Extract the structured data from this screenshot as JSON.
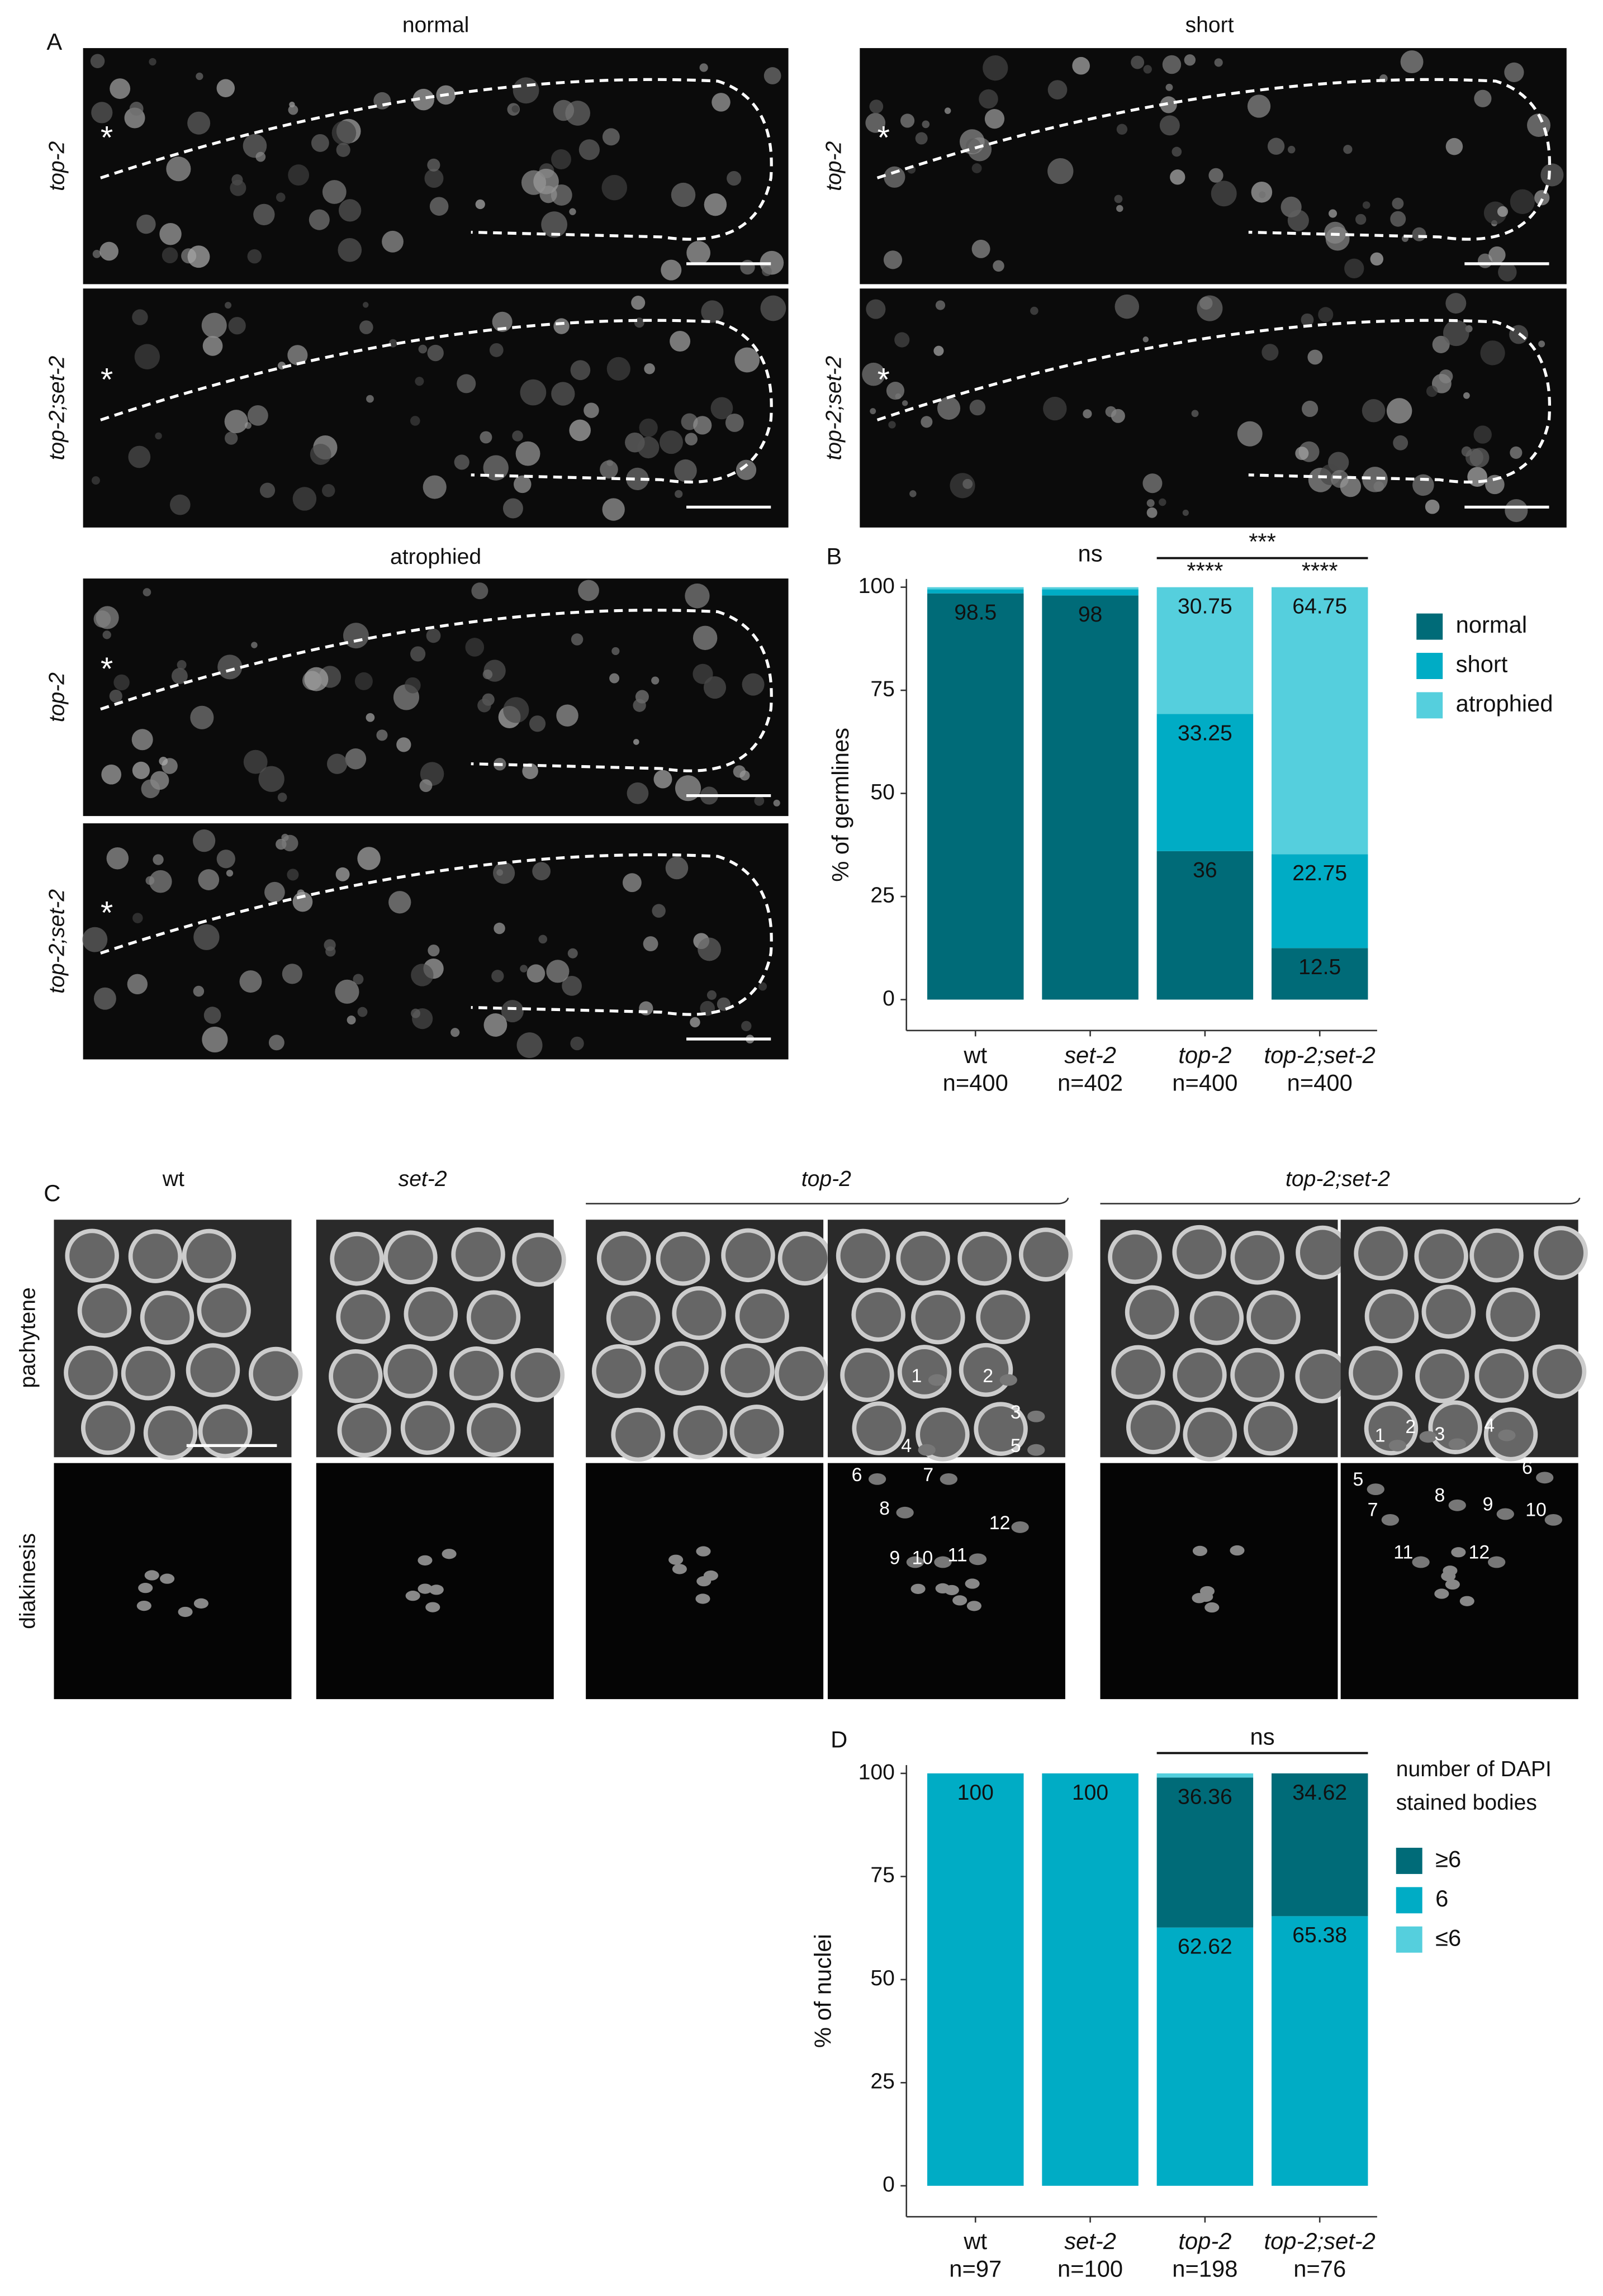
{
  "panel_labels": [
    "A",
    "B",
    "C",
    "D"
  ],
  "panel_a": {
    "columns": [
      "normal",
      "short",
      "atrophied"
    ],
    "rows": [
      "top-2",
      "top-2;set-2"
    ],
    "asterisk": "*"
  },
  "panel_c": {
    "columns": [
      "wt",
      "set-2",
      "top-2",
      "top-2;set-2"
    ],
    "rows": [
      "pachytene",
      "diakinesis"
    ],
    "top2_numbers": [
      "1",
      "2",
      "3",
      "4",
      "5",
      "6",
      "7",
      "8",
      "9",
      "10",
      "11",
      "12"
    ],
    "top2set2_numbers": [
      "1",
      "2",
      "3",
      "4",
      "5",
      "6",
      "7",
      "8",
      "9",
      "10",
      "11",
      "12"
    ]
  },
  "chart_data": [
    {
      "type": "bar",
      "stacked": true,
      "ylabel": "% of germlines",
      "categories": [
        "wt",
        "set-2",
        "top-2",
        "top-2;set-2"
      ],
      "category_notes": [
        "n=400",
        "n=402",
        "n=400",
        "n=400"
      ],
      "series": [
        {
          "name": "normal",
          "color": "#006b78",
          "values": [
            98.5,
            98,
            36,
            12.5
          ],
          "value_labels": [
            "98.5",
            "98",
            "36",
            "12.5"
          ]
        },
        {
          "name": "short",
          "color": "#00acc5",
          "values": [
            1,
            1.5,
            33.25,
            22.75
          ],
          "value_labels": [
            null,
            null,
            "33.25",
            "22.75"
          ]
        },
        {
          "name": "atrophied",
          "color": "#55cfdd",
          "values": [
            0.5,
            0.5,
            30.75,
            64.75
          ],
          "value_labels": [
            null,
            null,
            "30.75",
            "64.75"
          ]
        }
      ],
      "ylim": [
        -7.5,
        102
      ],
      "yticks": [
        0,
        25,
        50,
        75,
        100
      ],
      "annotations": [
        "ns",
        "****",
        "****",
        "***"
      ]
    },
    {
      "type": "bar",
      "stacked": true,
      "ylabel": "% of nuclei",
      "legend_title": [
        "number of DAPI",
        "stained bodies"
      ],
      "categories": [
        "wt",
        "set-2",
        "top-2",
        "top-2;set-2"
      ],
      "category_notes": [
        "n=97",
        "n=100",
        "n=198",
        "n=76"
      ],
      "series": [
        {
          "name": "≥6",
          "color": "#006b78",
          "values": [
            0,
            0,
            36.36,
            34.62
          ],
          "value_labels": [
            null,
            null,
            "36.36",
            "34.62"
          ]
        },
        {
          "name": "6",
          "color": "#00acc5",
          "values": [
            100,
            100,
            62.62,
            65.38
          ],
          "value_labels": [
            "100",
            "100",
            "62.62",
            "65.38"
          ]
        },
        {
          "name": "≤6",
          "color": "#55cfdd",
          "values": [
            0,
            0,
            1.02,
            0
          ],
          "value_labels": [
            null,
            null,
            null,
            null
          ]
        }
      ],
      "ylim": [
        -7.5,
        102
      ],
      "yticks": [
        0,
        25,
        50,
        75,
        100
      ],
      "annotations": [
        "ns"
      ]
    }
  ]
}
